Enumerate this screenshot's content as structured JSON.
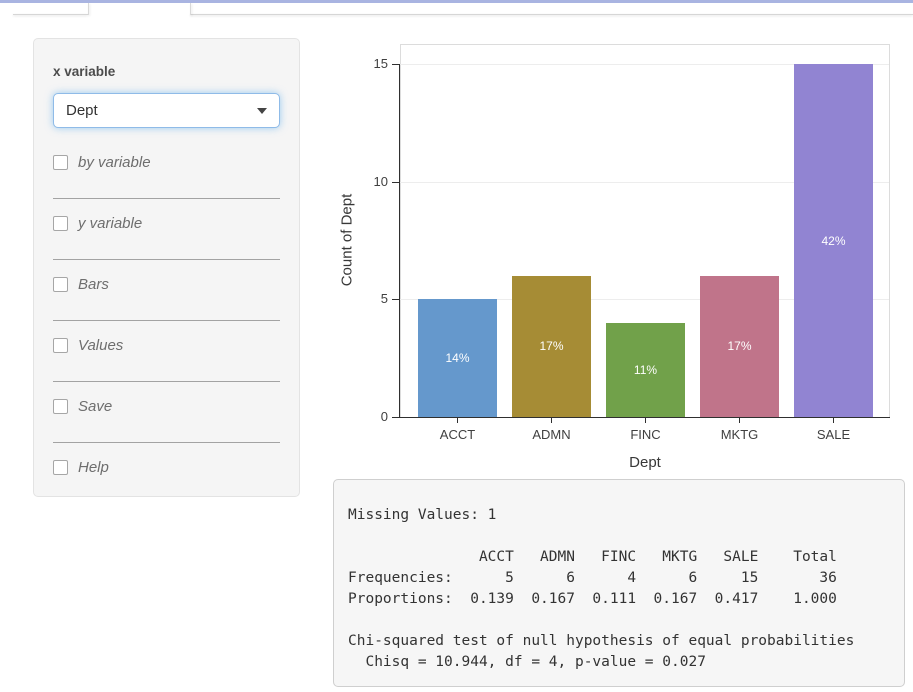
{
  "sidebar": {
    "x_label": "x variable",
    "select_value": "Dept",
    "checkboxes": [
      {
        "label": "by variable",
        "checked": false
      },
      {
        "label": "y variable",
        "checked": false
      },
      {
        "label": "Bars",
        "checked": false
      },
      {
        "label": "Values",
        "checked": false
      },
      {
        "label": "Save",
        "checked": false
      },
      {
        "label": "Help",
        "checked": false
      }
    ]
  },
  "chart_data": {
    "type": "bar",
    "categories": [
      "ACCT",
      "ADMN",
      "FINC",
      "MKTG",
      "SALE"
    ],
    "values": [
      5,
      6,
      4,
      6,
      15
    ],
    "bar_labels": [
      "14%",
      "17%",
      "11%",
      "17%",
      "42%"
    ],
    "colors": [
      "#6598cc",
      "#a68c35",
      "#71a14a",
      "#c0748a",
      "#9184d2"
    ],
    "title": "",
    "xlabel": "Dept",
    "ylabel": "Count of Dept",
    "ylim": [
      0,
      15
    ],
    "yticks": [
      0,
      5,
      10,
      15
    ],
    "grid": "horizontal-light",
    "legend": "none"
  },
  "output_panel": {
    "text": "Missing Values: 1\n\n               ACCT   ADMN   FINC   MKTG   SALE    Total\nFrequencies:      5      6      4      6     15       36\nProportions:  0.139  0.167  0.111  0.167  0.417    1.000\n\nChi-squared test of null hypothesis of equal probabilities\n  Chisq = 10.944, df = 4, p-value = 0.027",
    "missing_values": 1,
    "frequencies": {
      "ACCT": 5,
      "ADMN": 6,
      "FINC": 4,
      "MKTG": 6,
      "SALE": 15,
      "Total": 36
    },
    "proportions": {
      "ACCT": 0.139,
      "ADMN": 0.167,
      "FINC": 0.111,
      "MKTG": 0.167,
      "SALE": 0.417,
      "Total": 1.0
    },
    "chi_squared": {
      "chisq": 10.944,
      "df": 4,
      "p_value": 0.027
    }
  }
}
